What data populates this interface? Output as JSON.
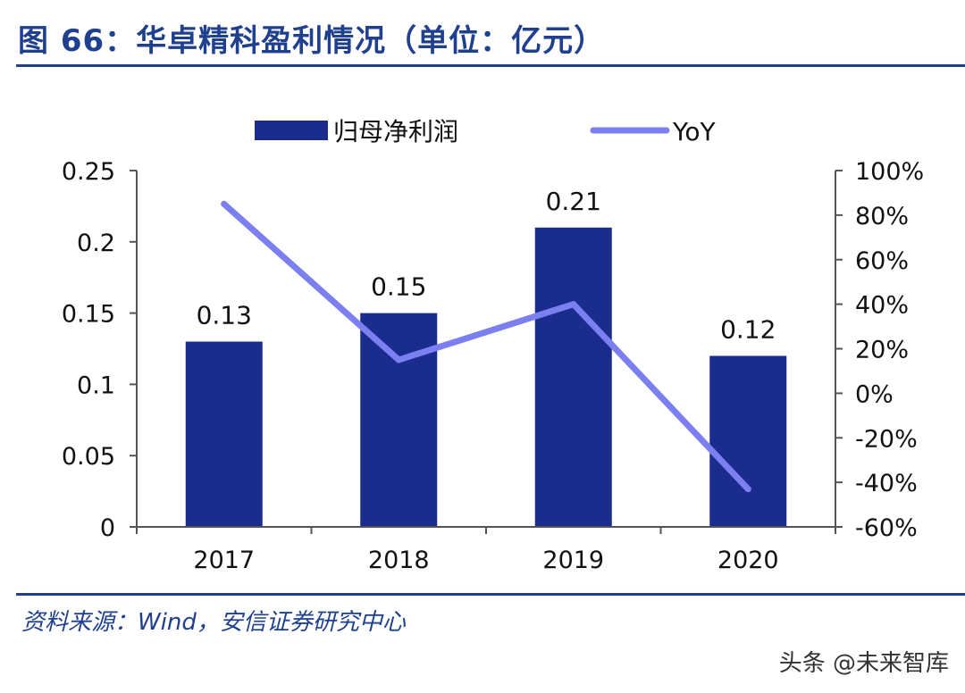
{
  "title": "图 66：华卓精科盈利情况（单位：亿元）",
  "source": "资料来源：Wind，安信证券研究中心",
  "watermark": "头条 @未来智库",
  "colors": {
    "bar": "#1a2d8f",
    "line": "#7b7ff0",
    "accent": "#1f3f8f"
  },
  "chart_data": {
    "type": "bar",
    "title": "华卓精科盈利情况（单位：亿元）",
    "categories": [
      "2017",
      "2018",
      "2019",
      "2020"
    ],
    "series": [
      {
        "name": "归母净利润",
        "type": "bar",
        "axis": "left",
        "values": [
          0.13,
          0.15,
          0.21,
          0.12
        ],
        "labels": [
          "0.13",
          "0.15",
          "0.21",
          "0.12"
        ]
      },
      {
        "name": "YoY",
        "type": "line",
        "axis": "right",
        "values": [
          85,
          15,
          40,
          -43
        ]
      }
    ],
    "y_left": {
      "min": 0,
      "max": 0.25,
      "ticks": [
        0,
        0.05,
        0.1,
        0.15,
        0.2,
        0.25
      ],
      "tick_labels": [
        "0",
        "0.05",
        "0.1",
        "0.15",
        "0.2",
        "0.25"
      ]
    },
    "y_right": {
      "min": -60,
      "max": 100,
      "ticks": [
        -60,
        -40,
        -20,
        0,
        20,
        40,
        60,
        80,
        100
      ],
      "tick_labels": [
        "-60%",
        "-40%",
        "-20%",
        "0%",
        "20%",
        "40%",
        "60%",
        "80%",
        "100%"
      ]
    },
    "legend": {
      "position": "top",
      "entries": [
        "归母净利润",
        "YoY"
      ]
    },
    "grid": false
  }
}
